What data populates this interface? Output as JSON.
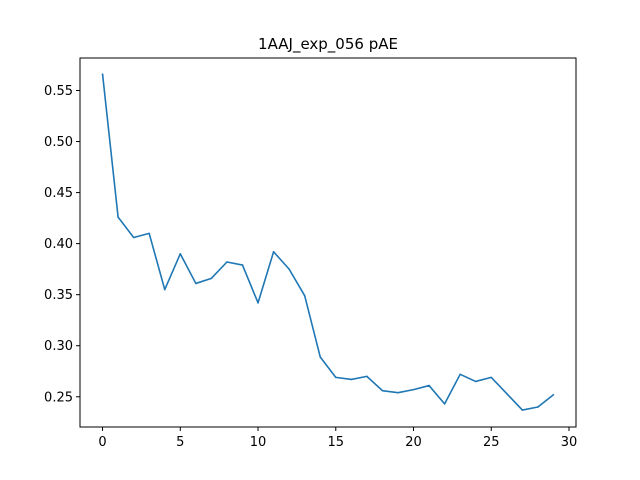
{
  "chart_data": {
    "type": "line",
    "title": "1AAJ_exp_056 pAE",
    "xlabel": "",
    "ylabel": "",
    "xlim": [
      -1.45,
      30.45
    ],
    "ylim": [
      0.2204,
      0.5818
    ],
    "xticks": [
      0,
      5,
      10,
      15,
      20,
      25,
      30
    ],
    "xtick_labels": [
      "0",
      "5",
      "10",
      "15",
      "20",
      "25",
      "30"
    ],
    "yticks": [
      0.25,
      0.3,
      0.35,
      0.4,
      0.45,
      0.5,
      0.55
    ],
    "ytick_labels": [
      "0.25",
      "0.30",
      "0.35",
      "0.40",
      "0.45",
      "0.50",
      "0.55"
    ],
    "grid": false,
    "series": [
      {
        "color": "#1f77b4",
        "x": [
          0,
          1,
          2,
          3,
          4,
          5,
          6,
          7,
          8,
          9,
          10,
          11,
          12,
          13,
          14,
          15,
          16,
          17,
          18,
          19,
          20,
          21,
          22,
          23,
          24,
          25,
          26,
          27,
          28,
          29
        ],
        "y": [
          0.566,
          0.426,
          0.406,
          0.41,
          0.355,
          0.39,
          0.361,
          0.366,
          0.382,
          0.379,
          0.342,
          0.392,
          0.375,
          0.349,
          0.289,
          0.269,
          0.267,
          0.27,
          0.256,
          0.254,
          0.257,
          0.261,
          0.243,
          0.272,
          0.265,
          0.269,
          0.253,
          0.237,
          0.24,
          0.252
        ]
      }
    ]
  }
}
